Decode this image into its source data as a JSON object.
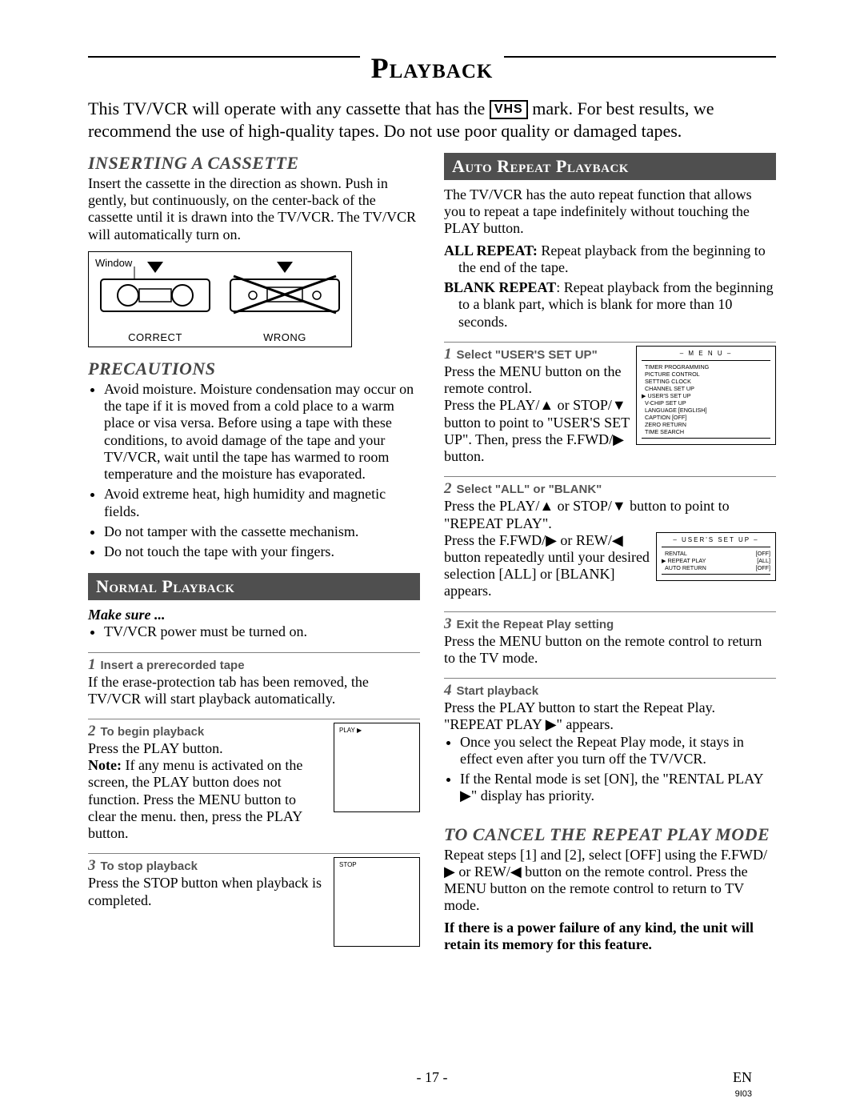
{
  "title": "Playback",
  "intro_a": "This TV/VCR will operate with any cassette that has the ",
  "vhs": "VHS",
  "intro_b": " mark. For best results, we recommend the use of high-quality tapes. Do not use poor quality or damaged tapes.",
  "left": {
    "insert_h": "INSERTING A CASSETTE",
    "insert_body": "Insert the cassette in the direction as shown. Push in gently, but continuously, on the center-back of the cassette until it is drawn into the TV/VCR. The TV/VCR will automatically turn on.",
    "diagram": {
      "window": "Window",
      "correct": "CORRECT",
      "wrong": "WRONG"
    },
    "precautions_h": "PRECAUTIONS",
    "precautions": [
      "Avoid moisture. Moisture condensation may occur on the tape if it is moved from a cold place to a warm place or visa versa. Before using a tape with these conditions, to avoid damage of the tape and your TV/VCR, wait until the tape has warmed to room temperature and the moisture has evaporated.",
      "Avoid extreme heat, high humidity and magnetic fields.",
      "Do not tamper with the cassette mechanism.",
      "Do not touch the tape with your fingers."
    ],
    "normal_h": "Normal Playback",
    "makesure": "Make sure ...",
    "makesure_item": "TV/VCR power must be turned on.",
    "step1_h": "Insert a prerecorded tape",
    "step1_body": "If the erase-protection tab has been removed, the TV/VCR will start playback automatically.",
    "step2_h": "To begin playback",
    "step2_body_a": "Press the PLAY button.",
    "step2_note_label": "Note:",
    "step2_note": " If any menu is activated on the screen, the PLAY button does not function. Press the MENU button to clear the menu. then, press the PLAY button.",
    "step3_h": "To stop playback",
    "step3_body": "Press the STOP button when playback is completed.",
    "scr_play": "PLAY ▶",
    "scr_stop": "STOP"
  },
  "right": {
    "auto_h": "Auto Repeat Playback",
    "auto_intro": "The TV/VCR has the auto repeat function that allows you to repeat a tape indefinitely without touching the PLAY button.",
    "all_label": "ALL REPEAT:",
    "all_body": " Repeat playback from the beginning to the end of the tape.",
    "blank_label": "BLANK REPEAT",
    "blank_body": ": Repeat playback from the beginning to a blank part, which is blank for more than 10 seconds.",
    "r1_h": "Select \"USER'S SET UP\"",
    "r1_body": "Press the MENU button on the remote control.\nPress the PLAY/▲ or STOP/▼ button to point to \"USER'S SET UP\". Then, press the F.FWD/▶ button.",
    "menu1": {
      "header": "– M E N U –",
      "items": [
        "TIMER PROGRAMMING",
        "PICTURE CONTROL",
        "SETTING CLOCK",
        "CHANNEL SET UP",
        "USER'S SET UP",
        "V-CHIP SET UP",
        "LANGUAGE   [ENGLISH]",
        "CAPTION        [OFF]",
        "ZERO RETURN",
        "TIME SEARCH"
      ],
      "pointer_index": 4
    },
    "r2_h": "Select \"ALL\" or \"BLANK\"",
    "r2_body_a": "Press the PLAY/▲ or STOP/▼ button to point to \"REPEAT PLAY\".",
    "r2_body_b": "Press the F.FWD/▶ or REW/◀ button repeatedly until your desired selection [ALL] or [BLANK] appears.",
    "menu2": {
      "header": "– USER'S SET UP –",
      "rows": [
        {
          "label": "RENTAL",
          "val": "[OFF]"
        },
        {
          "label": "REPEAT PLAY",
          "val": "[ALL]"
        },
        {
          "label": "AUTO RETURN",
          "val": "[OFF]"
        }
      ],
      "pointer_index": 1
    },
    "r3_h": "Exit the Repeat Play setting",
    "r3_body": "Press the MENU button on the remote control to return to the TV mode.",
    "r4_h": "Start playback",
    "r4_body": "Press the PLAY button to start the Repeat Play. \"REPEAT PLAY ▶\" appears.",
    "r4_bullets": [
      "Once you select the Repeat Play mode, it stays in effect even after you turn off the TV/VCR.",
      "If the Rental mode is set [ON], the \"RENTAL PLAY ▶\" display has priority."
    ],
    "cancel_h": "TO CANCEL THE REPEAT PLAY MODE",
    "cancel_body": "Repeat steps [1] and [2], select [OFF] using the F.FWD/▶ or REW/◀ button on the remote control. Press the MENU button on the remote control to return to TV mode.",
    "cancel_bold": "If there is a power failure of any kind, the unit will retain its memory for this feature."
  },
  "footer": {
    "page": "- 17 -",
    "en": "EN",
    "code": "9I03"
  }
}
